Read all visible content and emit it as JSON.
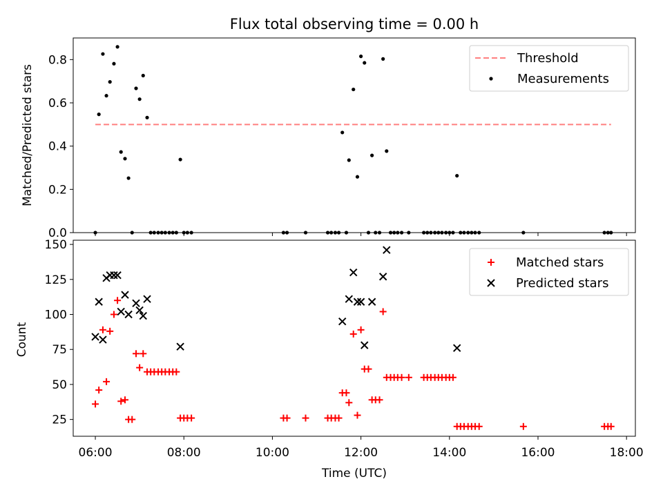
{
  "chart_data": [
    {
      "type": "scatter",
      "title": "Flux total observing time = 0.00 h",
      "ylabel": "Matched/Predicted stars",
      "xlabel": "",
      "xlim": [
        5.5,
        18.2
      ],
      "ylim": [
        0,
        0.9
      ],
      "yticks": [
        "0.0",
        "0.2",
        "0.4",
        "0.6",
        "0.8"
      ],
      "grid": false,
      "legend_position": "top-right",
      "threshold": {
        "name": "Threshold",
        "y": 0.5,
        "x": [
          6.0,
          17.65
        ],
        "color": "#ff7f7f"
      },
      "series": [
        {
          "name": "Measurements",
          "color": "#000000",
          "marker": "dot",
          "points": [
            [
              6.0,
              0.0
            ],
            [
              6.08,
              0.547
            ],
            [
              6.17,
              0.826
            ],
            [
              6.25,
              0.633
            ],
            [
              6.33,
              0.697
            ],
            [
              6.42,
              0.781
            ],
            [
              6.5,
              0.859
            ],
            [
              6.58,
              0.373
            ],
            [
              6.67,
              0.342
            ],
            [
              6.75,
              0.252
            ],
            [
              6.83,
              0.0
            ],
            [
              6.92,
              0.667
            ],
            [
              7.0,
              0.617
            ],
            [
              7.08,
              0.726
            ],
            [
              7.17,
              0.532
            ],
            [
              7.25,
              0.0
            ],
            [
              7.33,
              0.0
            ],
            [
              7.42,
              0.0
            ],
            [
              7.5,
              0.0
            ],
            [
              7.58,
              0.0
            ],
            [
              7.67,
              0.0
            ],
            [
              7.75,
              0.0
            ],
            [
              7.83,
              0.0
            ],
            [
              7.92,
              0.338
            ],
            [
              8.0,
              0.0
            ],
            [
              8.08,
              0.0
            ],
            [
              8.17,
              0.0
            ],
            [
              10.25,
              0.0
            ],
            [
              10.33,
              0.0
            ],
            [
              10.75,
              0.0
            ],
            [
              11.25,
              0.0
            ],
            [
              11.33,
              0.0
            ],
            [
              11.42,
              0.0
            ],
            [
              11.5,
              0.0
            ],
            [
              11.58,
              0.463
            ],
            [
              11.67,
              0.0
            ],
            [
              11.73,
              0.335
            ],
            [
              11.83,
              0.662
            ],
            [
              11.92,
              0.258
            ],
            [
              12.0,
              0.815
            ],
            [
              12.08,
              0.785
            ],
            [
              12.17,
              0.0
            ],
            [
              12.25,
              0.357
            ],
            [
              12.33,
              0.0
            ],
            [
              12.42,
              0.0
            ],
            [
              12.5,
              0.803
            ],
            [
              12.58,
              0.377
            ],
            [
              12.67,
              0.0
            ],
            [
              12.75,
              0.0
            ],
            [
              12.83,
              0.0
            ],
            [
              12.92,
              0.0
            ],
            [
              13.08,
              0.0
            ],
            [
              13.42,
              0.0
            ],
            [
              13.5,
              0.0
            ],
            [
              13.58,
              0.0
            ],
            [
              13.67,
              0.0
            ],
            [
              13.75,
              0.0
            ],
            [
              13.83,
              0.0
            ],
            [
              13.92,
              0.0
            ],
            [
              14.0,
              0.0
            ],
            [
              14.08,
              0.0
            ],
            [
              14.17,
              0.263
            ],
            [
              14.25,
              0.0
            ],
            [
              14.33,
              0.0
            ],
            [
              14.42,
              0.0
            ],
            [
              14.5,
              0.0
            ],
            [
              14.58,
              0.0
            ],
            [
              14.67,
              0.0
            ],
            [
              15.67,
              0.0
            ],
            [
              17.5,
              0.0
            ],
            [
              17.58,
              0.0
            ],
            [
              17.65,
              0.0
            ]
          ]
        }
      ]
    },
    {
      "type": "scatter",
      "title": "",
      "ylabel": "Count",
      "xlabel": "Time (UTC)",
      "xlim": [
        5.5,
        18.2
      ],
      "ylim": [
        13,
        153
      ],
      "yticks": [
        "25",
        "50",
        "75",
        "100",
        "125",
        "150"
      ],
      "xtick_values": [
        6,
        8,
        10,
        12,
        14,
        16,
        18
      ],
      "xticks": [
        "06:00",
        "08:00",
        "10:00",
        "12:00",
        "14:00",
        "16:00",
        "18:00"
      ],
      "grid": false,
      "legend_position": "top-right",
      "series": [
        {
          "name": "Matched stars",
          "color": "#ff0000",
          "marker": "plus",
          "points": [
            [
              6.0,
              36
            ],
            [
              6.08,
              46
            ],
            [
              6.17,
              89
            ],
            [
              6.25,
              52
            ],
            [
              6.33,
              88
            ],
            [
              6.42,
              100
            ],
            [
              6.5,
              110
            ],
            [
              6.58,
              38
            ],
            [
              6.67,
              39
            ],
            [
              6.75,
              25
            ],
            [
              6.83,
              25
            ],
            [
              6.92,
              72
            ],
            [
              7.0,
              62
            ],
            [
              7.08,
              72
            ],
            [
              7.17,
              59
            ],
            [
              7.25,
              59
            ],
            [
              7.33,
              59
            ],
            [
              7.42,
              59
            ],
            [
              7.5,
              59
            ],
            [
              7.58,
              59
            ],
            [
              7.67,
              59
            ],
            [
              7.75,
              59
            ],
            [
              7.83,
              59
            ],
            [
              7.92,
              26
            ],
            [
              8.0,
              26
            ],
            [
              8.08,
              26
            ],
            [
              8.17,
              26
            ],
            [
              10.25,
              26
            ],
            [
              10.33,
              26
            ],
            [
              10.75,
              26
            ],
            [
              11.25,
              26
            ],
            [
              11.33,
              26
            ],
            [
              11.42,
              26
            ],
            [
              11.5,
              26
            ],
            [
              11.58,
              44
            ],
            [
              11.67,
              44
            ],
            [
              11.73,
              37
            ],
            [
              11.83,
              86
            ],
            [
              11.92,
              28
            ],
            [
              12.0,
              89
            ],
            [
              12.08,
              61
            ],
            [
              12.17,
              61
            ],
            [
              12.25,
              39
            ],
            [
              12.33,
              39
            ],
            [
              12.42,
              39
            ],
            [
              12.5,
              102
            ],
            [
              12.58,
              55
            ],
            [
              12.67,
              55
            ],
            [
              12.75,
              55
            ],
            [
              12.83,
              55
            ],
            [
              12.92,
              55
            ],
            [
              13.08,
              55
            ],
            [
              13.42,
              55
            ],
            [
              13.5,
              55
            ],
            [
              13.58,
              55
            ],
            [
              13.67,
              55
            ],
            [
              13.75,
              55
            ],
            [
              13.83,
              55
            ],
            [
              13.92,
              55
            ],
            [
              14.0,
              55
            ],
            [
              14.08,
              55
            ],
            [
              14.17,
              20
            ],
            [
              14.25,
              20
            ],
            [
              14.33,
              20
            ],
            [
              14.42,
              20
            ],
            [
              14.5,
              20
            ],
            [
              14.58,
              20
            ],
            [
              14.67,
              20
            ],
            [
              15.67,
              20
            ],
            [
              17.5,
              20
            ],
            [
              17.58,
              20
            ],
            [
              17.65,
              20
            ]
          ]
        },
        {
          "name": "Predicted stars",
          "color": "#000000",
          "marker": "x",
          "points": [
            [
              6.0,
              84
            ],
            [
              6.08,
              109
            ],
            [
              6.17,
              82
            ],
            [
              6.25,
              126
            ],
            [
              6.33,
              128
            ],
            [
              6.42,
              128
            ],
            [
              6.5,
              128
            ],
            [
              6.58,
              102
            ],
            [
              6.67,
              114
            ],
            [
              6.75,
              100
            ],
            [
              6.92,
              108
            ],
            [
              7.0,
              103
            ],
            [
              7.08,
              99
            ],
            [
              7.17,
              111
            ],
            [
              7.92,
              77
            ],
            [
              11.58,
              95
            ],
            [
              11.73,
              111
            ],
            [
              11.83,
              130
            ],
            [
              11.92,
              109
            ],
            [
              12.0,
              109
            ],
            [
              12.08,
              78
            ],
            [
              12.25,
              109
            ],
            [
              12.5,
              127
            ],
            [
              12.58,
              146
            ],
            [
              14.17,
              76
            ]
          ]
        }
      ]
    }
  ]
}
